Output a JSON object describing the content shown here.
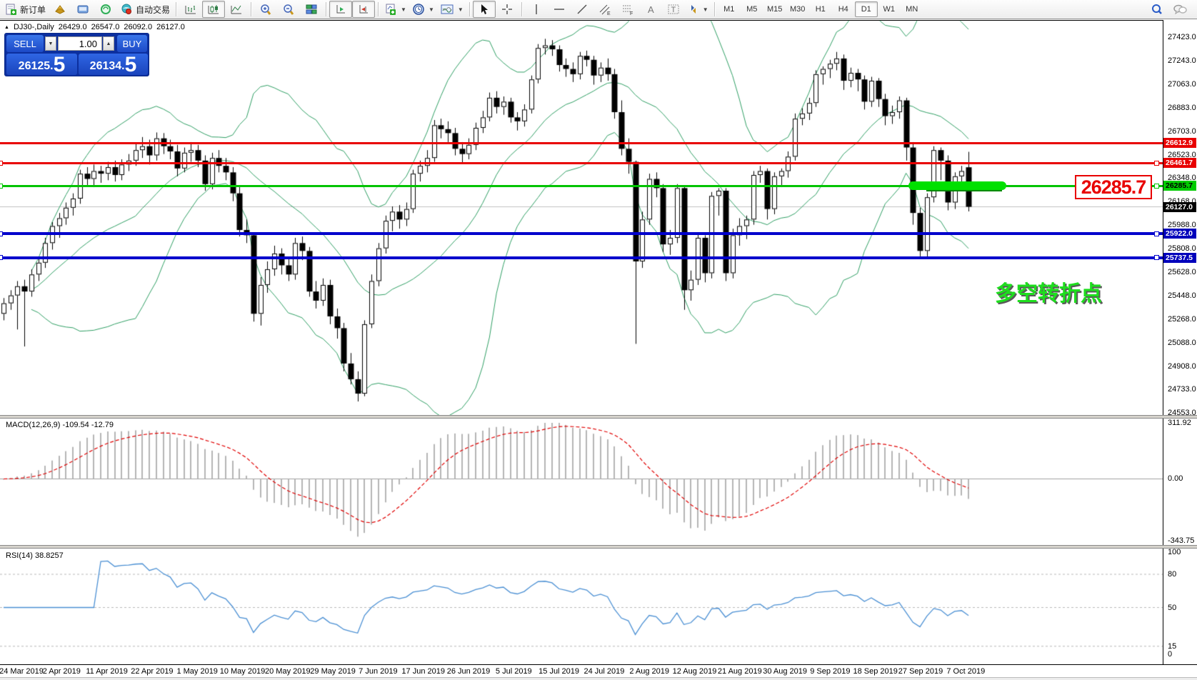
{
  "toolbar": {
    "new_order_label": "新订单",
    "autotrading_label": "自动交易",
    "icons": [
      "new-order-icon",
      "market-icon",
      "editor-icon",
      "signals-icon",
      "autotrading-icon",
      "bar-chart-icon",
      "candlestick-chart-icon",
      "line-chart-icon",
      "zoom-in-icon",
      "zoom-out-icon",
      "tile-windows-icon",
      "auto-scroll-icon",
      "chart-shift-icon",
      "indicators-icon",
      "periods-clock-icon",
      "template-icon",
      "cursor-icon",
      "crosshair-icon",
      "vertical-line-icon",
      "horizontal-line-icon",
      "trendline-icon",
      "channel-icon",
      "fibonacci-icon",
      "text-icon",
      "text-label-icon",
      "arrows-icon",
      "search-icon",
      "chat-icon"
    ],
    "timeframes": [
      "M1",
      "M5",
      "M15",
      "M30",
      "H1",
      "H4",
      "D1",
      "W1",
      "MN"
    ],
    "active_timeframe": "D1"
  },
  "chart": {
    "collapse_glyph": "▲",
    "symbol_title": "DJ30-,Daily",
    "ohlc": {
      "open": "26429.0",
      "high": "26547.0",
      "low": "26092.0",
      "close": "26127.0"
    },
    "trade_panel": {
      "sell_label": "SELL",
      "buy_label": "BUY",
      "volume": "1.00",
      "sell_price": "26125",
      "sell_frac": "5",
      "buy_price": "26134",
      "buy_frac": "5",
      "dot": "."
    },
    "annotations": {
      "turning_point": "多空转折点",
      "price_callout": "26285.7"
    },
    "hlines": [
      {
        "price": "26612.9",
        "value": 26612.9,
        "color": "#e80000",
        "badge_bg": "#e80000",
        "badge_fg": "#ffffff",
        "handles": false,
        "thickness": 3
      },
      {
        "price": "26461.7",
        "value": 26461.7,
        "color": "#e80000",
        "badge_bg": "#e80000",
        "badge_fg": "#ffffff",
        "handles": true,
        "thickness": 3
      },
      {
        "price": "26285.7",
        "value": 26285.7,
        "color": "#00c400",
        "badge_bg": "#00cc00",
        "badge_fg": "#000000",
        "handles": true,
        "thickness": 3
      },
      {
        "price": "25922.0",
        "value": 25922.0,
        "color": "#0000cc",
        "badge_bg": "#0000bb",
        "badge_fg": "#ffffff",
        "handles": true,
        "thickness": 4
      },
      {
        "price": "25737.5",
        "value": 25737.5,
        "color": "#0000cc",
        "badge_bg": "#0000bb",
        "badge_fg": "#ffffff",
        "handles": true,
        "thickness": 4
      }
    ],
    "bid": {
      "price": "26127.0",
      "value": 26127.0,
      "badge_bg": "#000000",
      "badge_fg": "#ffffff",
      "line_color": "#c0c0c0"
    },
    "price_axis_ticks": [
      "27423.0",
      "27243.0",
      "27063.0",
      "26883.0",
      "26703.0",
      "26523.0",
      "26348.0",
      "26168.0",
      "25988.0",
      "25808.0",
      "25628.0",
      "25448.0",
      "25268.0",
      "25088.0",
      "24908.0",
      "24733.0",
      "24553.0"
    ],
    "macd_axis_ticks": [
      "311.92",
      "0.00",
      "-343.75"
    ],
    "rsi_axis_ticks": [
      "100",
      "80",
      "50",
      "15",
      "0"
    ],
    "indicator_labels": {
      "macd": "MACD(12,26,9) -109.54 -12.79",
      "rsi": "RSI(14) 38.8257"
    }
  },
  "chart_data": {
    "type": "candlestick",
    "symbol": "DJ30-",
    "timeframe": "Daily",
    "title": "DJ30-,Daily 26429.0 26547.0 26092.0 26127.0",
    "x_labels": [
      "24 Mar 2019",
      "2 Apr 2019",
      "11 Apr 2019",
      "22 Apr 2019",
      "1 May 2019",
      "10 May 2019",
      "20 May 2019",
      "29 May 2019",
      "7 Jun 2019",
      "17 Jun 2019",
      "26 Jun 2019",
      "5 Jul 2019",
      "15 Jul 2019",
      "24 Jul 2019",
      "2 Aug 2019",
      "12 Aug 2019",
      "21 Aug 2019",
      "30 Aug 2019",
      "9 Sep 2019",
      "18 Sep 2019",
      "27 Sep 2019",
      "7 Oct 2019"
    ],
    "price_axis": {
      "min": 24553.0,
      "max": 27423.0
    },
    "candles": [
      [
        25310,
        25430,
        25260,
        25390
      ],
      [
        25390,
        25490,
        25340,
        25450
      ],
      [
        25450,
        25560,
        25190,
        25520
      ],
      [
        25520,
        25570,
        25060,
        25480
      ],
      [
        25480,
        25650,
        25440,
        25610
      ],
      [
        25610,
        25740,
        25560,
        25700
      ],
      [
        25700,
        25890,
        25660,
        25850
      ],
      [
        25850,
        26010,
        25800,
        25980
      ],
      [
        25980,
        26080,
        25890,
        26040
      ],
      [
        26040,
        26160,
        25990,
        26120
      ],
      [
        26120,
        26230,
        26060,
        26190
      ],
      [
        26190,
        26410,
        26150,
        26380
      ],
      [
        26380,
        26430,
        26290,
        26340
      ],
      [
        26340,
        26450,
        26280,
        26400
      ],
      [
        26400,
        26440,
        26310,
        26380
      ],
      [
        26380,
        26470,
        26330,
        26430
      ],
      [
        26430,
        26480,
        26320,
        26370
      ],
      [
        26370,
        26490,
        26330,
        26450
      ],
      [
        26450,
        26530,
        26400,
        26480
      ],
      [
        26480,
        26610,
        26440,
        26560
      ],
      [
        26560,
        26660,
        26500,
        26590
      ],
      [
        26590,
        26640,
        26450,
        26520
      ],
      [
        26520,
        26695,
        26480,
        26650
      ],
      [
        26650,
        26690,
        26530,
        26590
      ],
      [
        26590,
        26640,
        26490,
        26550
      ],
      [
        26550,
        26600,
        26360,
        26420
      ],
      [
        26420,
        26580,
        26390,
        26540
      ],
      [
        26540,
        26620,
        26470,
        26560
      ],
      [
        26560,
        26600,
        26430,
        26480
      ],
      [
        26480,
        26520,
        26250,
        26300
      ],
      [
        26300,
        26540,
        26260,
        26500
      ],
      [
        26500,
        26560,
        26390,
        26440
      ],
      [
        26440,
        26500,
        26330,
        26390
      ],
      [
        26390,
        26430,
        26170,
        26230
      ],
      [
        26230,
        26280,
        25900,
        25950
      ],
      [
        25950,
        26030,
        25850,
        25910
      ],
      [
        25910,
        25930,
        25250,
        25310
      ],
      [
        25310,
        25590,
        25220,
        25530
      ],
      [
        25530,
        25710,
        25470,
        25650
      ],
      [
        25650,
        25830,
        25600,
        25770
      ],
      [
        25770,
        25810,
        25610,
        25680
      ],
      [
        25680,
        25730,
        25560,
        25610
      ],
      [
        25610,
        25890,
        25570,
        25850
      ],
      [
        25850,
        25900,
        25720,
        25790
      ],
      [
        25790,
        25820,
        25440,
        25480
      ],
      [
        25480,
        25560,
        25350,
        25410
      ],
      [
        25410,
        25580,
        25370,
        25530
      ],
      [
        25530,
        25570,
        25230,
        25290
      ],
      [
        25290,
        25350,
        25120,
        25200
      ],
      [
        25200,
        25240,
        24870,
        24930
      ],
      [
        24930,
        25010,
        24770,
        24810
      ],
      [
        24810,
        24870,
        24640,
        24700
      ],
      [
        24700,
        25260,
        24680,
        25230
      ],
      [
        25230,
        25610,
        25200,
        25560
      ],
      [
        25560,
        25850,
        25520,
        25810
      ],
      [
        25810,
        26060,
        25770,
        26020
      ],
      [
        26020,
        26130,
        25940,
        26090
      ],
      [
        26090,
        26140,
        25960,
        26030
      ],
      [
        26030,
        26160,
        25980,
        26110
      ],
      [
        26110,
        26410,
        26080,
        26380
      ],
      [
        26380,
        26480,
        26320,
        26440
      ],
      [
        26440,
        26560,
        26390,
        26500
      ],
      [
        26500,
        26790,
        26470,
        26750
      ],
      [
        26750,
        26800,
        26650,
        26720
      ],
      [
        26720,
        26780,
        26620,
        26690
      ],
      [
        26690,
        26730,
        26520,
        26570
      ],
      [
        26570,
        26620,
        26460,
        26530
      ],
      [
        26530,
        26650,
        26490,
        26600
      ],
      [
        26600,
        26770,
        26560,
        26730
      ],
      [
        26730,
        26860,
        26690,
        26810
      ],
      [
        26810,
        27000,
        26780,
        26960
      ],
      [
        26960,
        27010,
        26840,
        26890
      ],
      [
        26890,
        26970,
        26830,
        26930
      ],
      [
        26930,
        26960,
        26770,
        26810
      ],
      [
        26810,
        26850,
        26710,
        26780
      ],
      [
        26780,
        26910,
        26740,
        26870
      ],
      [
        26870,
        27130,
        26840,
        27100
      ],
      [
        27100,
        27370,
        27070,
        27340
      ],
      [
        27340,
        27410,
        27290,
        27360
      ],
      [
        27360,
        27400,
        27280,
        27330
      ],
      [
        27330,
        27360,
        27160,
        27210
      ],
      [
        27210,
        27260,
        27120,
        27180
      ],
      [
        27180,
        27230,
        27080,
        27140
      ],
      [
        27140,
        27310,
        27100,
        27280
      ],
      [
        27280,
        27320,
        27200,
        27250
      ],
      [
        27250,
        27280,
        27060,
        27130
      ],
      [
        27130,
        27230,
        27080,
        27190
      ],
      [
        27190,
        27260,
        27090,
        27140
      ],
      [
        27140,
        27180,
        26800,
        26850
      ],
      [
        26850,
        26940,
        26520,
        26570
      ],
      [
        26570,
        26650,
        26380,
        26470
      ],
      [
        26470,
        26480,
        25080,
        25710
      ],
      [
        25710,
        26090,
        25660,
        26030
      ],
      [
        26030,
        26380,
        25990,
        26340
      ],
      [
        26340,
        26390,
        26200,
        26270
      ],
      [
        26270,
        26300,
        25780,
        25840
      ],
      [
        25840,
        25950,
        25760,
        25890
      ],
      [
        25890,
        26300,
        25850,
        26270
      ],
      [
        26270,
        26280,
        25340,
        25490
      ],
      [
        25490,
        25640,
        25410,
        25570
      ],
      [
        25570,
        25930,
        25530,
        25890
      ],
      [
        25890,
        25910,
        25550,
        25620
      ],
      [
        25620,
        26240,
        25580,
        26210
      ],
      [
        26210,
        26270,
        26060,
        26250
      ],
      [
        26250,
        26270,
        25560,
        25620
      ],
      [
        25620,
        25960,
        25580,
        25910
      ],
      [
        25910,
        26040,
        25830,
        25980
      ],
      [
        25980,
        26060,
        25880,
        26030
      ],
      [
        26030,
        26400,
        25990,
        26370
      ],
      [
        26370,
        26440,
        26310,
        26400
      ],
      [
        26400,
        26420,
        26030,
        26110
      ],
      [
        26110,
        26390,
        26070,
        26360
      ],
      [
        26360,
        26420,
        26280,
        26400
      ],
      [
        26400,
        26550,
        26350,
        26510
      ],
      [
        26510,
        26840,
        26480,
        26800
      ],
      [
        26800,
        26880,
        26750,
        26840
      ],
      [
        26840,
        26960,
        26790,
        26920
      ],
      [
        26920,
        27170,
        26890,
        27140
      ],
      [
        27140,
        27200,
        27060,
        27180
      ],
      [
        27180,
        27250,
        27110,
        27220
      ],
      [
        27220,
        27310,
        27170,
        27260
      ],
      [
        27260,
        27290,
        27020,
        27090
      ],
      [
        27090,
        27190,
        27040,
        27150
      ],
      [
        27150,
        27180,
        27010,
        27100
      ],
      [
        27100,
        27130,
        26870,
        26930
      ],
      [
        26930,
        27120,
        26890,
        27090
      ],
      [
        27090,
        27110,
        26890,
        26950
      ],
      [
        26950,
        26990,
        26750,
        26820
      ],
      [
        26820,
        26900,
        26760,
        26850
      ],
      [
        26850,
        26970,
        26800,
        26940
      ],
      [
        26940,
        26960,
        26480,
        26580
      ],
      [
        26580,
        26620,
        25990,
        26080
      ],
      [
        26080,
        26120,
        25745,
        25790
      ],
      [
        25790,
        26230,
        25740,
        26200
      ],
      [
        26200,
        26590,
        26160,
        26560
      ],
      [
        26560,
        26580,
        26330,
        26480
      ],
      [
        26480,
        26520,
        26100,
        26160
      ],
      [
        26160,
        26390,
        26110,
        26360
      ],
      [
        26360,
        26440,
        26300,
        26400
      ],
      [
        26429,
        26547,
        26092,
        26127
      ]
    ],
    "overlays": {
      "bollinger": {
        "period": 20,
        "deviation": 2,
        "color": "#2e9e63"
      }
    },
    "horizontal_levels": [
      26612.9,
      26461.7,
      26285.7,
      25922.0,
      25737.5
    ],
    "sub_charts": [
      {
        "type": "macd",
        "params": [
          12,
          26,
          9
        ],
        "current_values": [
          -109.54,
          -12.79
        ],
        "ylim": [
          -343.75,
          311.92
        ],
        "histogram_color": "#b4b4b4",
        "signal_color": "#e00000"
      },
      {
        "type": "rsi",
        "params": [
          14
        ],
        "current_value": 38.8257,
        "ylim": [
          0,
          100
        ],
        "levels": [
          80,
          50,
          15
        ],
        "line_color": "#4a8fd3"
      }
    ]
  }
}
